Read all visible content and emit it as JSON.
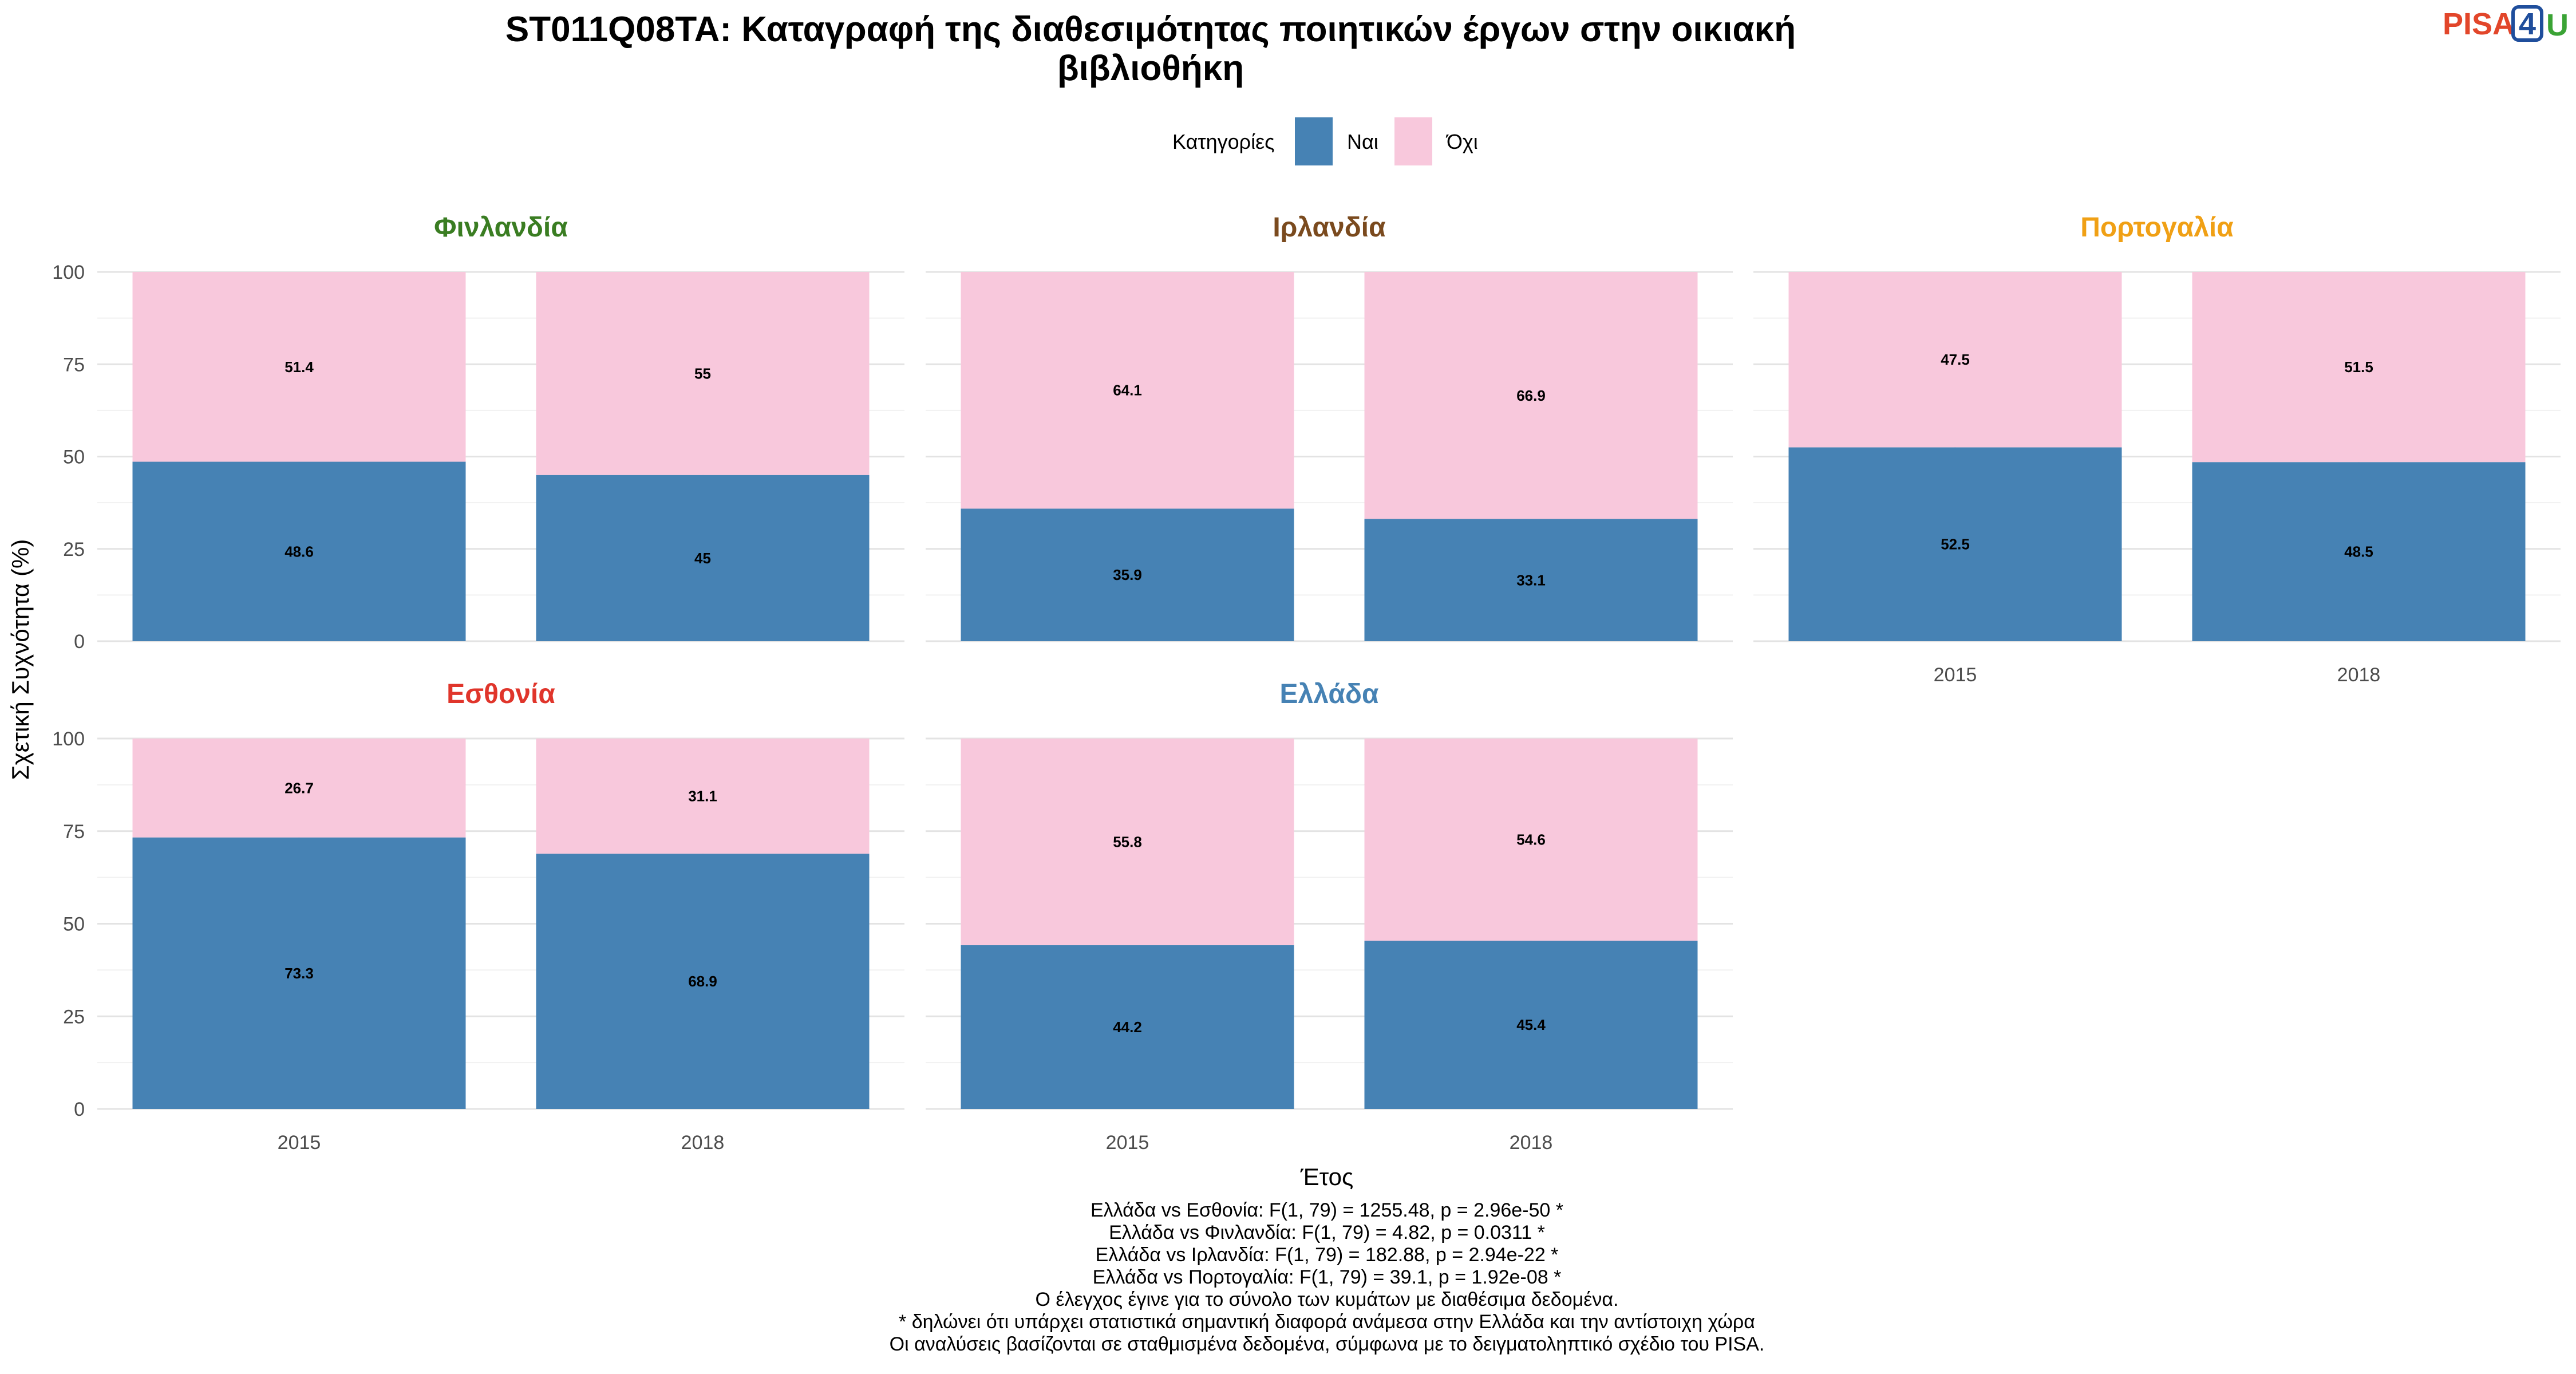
{
  "chart_data": {
    "type": "bar",
    "stacked": true,
    "title_lines": [
      "ST011Q08TA: Καταγραφή της διαθεσιμότητας ποιητικών έργων στην οικιακή",
      "βιβλιοθήκη"
    ],
    "legend": {
      "title": "Κατηγορίες",
      "position": "top",
      "entries": [
        {
          "label": "Ναι",
          "color": "#4682b4"
        },
        {
          "label": "Όχι",
          "color": "#f8c8dc"
        }
      ]
    },
    "xlabel": "Έτος",
    "ylabel": "Σχετική Συχνότητα (%)",
    "ylim": [
      0,
      100
    ],
    "yticks": [
      "0",
      "25",
      "50",
      "75",
      "100"
    ],
    "categories": [
      "2015",
      "2018"
    ],
    "grid": true,
    "panels": [
      {
        "title": "Φινλανδία",
        "title_color": "#3a7d22",
        "series": [
          {
            "name": "Ναι",
            "values": [
              48.6,
              45
            ]
          },
          {
            "name": "Όχι",
            "values": [
              51.4,
              55
            ]
          }
        ],
        "labels": {
          "Ναι": [
            "48.6",
            "45"
          ],
          "Όχι": [
            "51.4",
            "55"
          ]
        }
      },
      {
        "title": "Ιρλανδία",
        "title_color": "#7a4a1e",
        "series": [
          {
            "name": "Ναι",
            "values": [
              35.9,
              33.1
            ]
          },
          {
            "name": "Όχι",
            "values": [
              64.1,
              66.9
            ]
          }
        ],
        "labels": {
          "Ναι": [
            "35.9",
            "33.1"
          ],
          "Όχι": [
            "64.1",
            "66.9"
          ]
        }
      },
      {
        "title": "Πορτογαλία",
        "title_color": "#f0a015",
        "series": [
          {
            "name": "Ναι",
            "values": [
              52.5,
              48.5
            ]
          },
          {
            "name": "Όχι",
            "values": [
              47.5,
              51.5
            ]
          }
        ],
        "labels": {
          "Ναι": [
            "52.5",
            "48.5"
          ],
          "Όχι": [
            "47.5",
            "51.5"
          ]
        }
      },
      {
        "title": "Εσθονία",
        "title_color": "#e0352b",
        "series": [
          {
            "name": "Ναι",
            "values": [
              73.3,
              68.9
            ]
          },
          {
            "name": "Όχι",
            "values": [
              26.7,
              31.1
            ]
          }
        ],
        "labels": {
          "Ναι": [
            "73.3",
            "68.9"
          ],
          "Όχι": [
            "26.7",
            "31.1"
          ]
        }
      },
      {
        "title": "Ελλάδα",
        "title_color": "#4682b4",
        "series": [
          {
            "name": "Ναι",
            "values": [
              44.2,
              45.4
            ]
          },
          {
            "name": "Όχι",
            "values": [
              55.8,
              54.6
            ]
          }
        ],
        "labels": {
          "Ναι": [
            "44.2",
            "45.4"
          ],
          "Όχι": [
            "55.8",
            "54.6"
          ]
        }
      }
    ],
    "caption_lines": [
      "Ελλάδα vs Εσθονία: F(1, 79) = 1255.48, p = 2.96e-50 *",
      "Ελλάδα vs Φινλανδία: F(1, 79) = 4.82, p = 0.0311 *",
      "Ελλάδα vs Ιρλανδία: F(1, 79) = 182.88, p = 2.94e-22 *",
      "Ελλάδα vs Πορτογαλία: F(1, 79) = 39.1, p = 1.92e-08 *",
      "Ο έλεγχος έγινε για το σύνολο των κυμάτων με διαθέσιμα δεδομένα.",
      "* δηλώνει ότι υπάρχει στατιστικά σημαντική διαφορά ανάμεσα στην Ελλάδα και την αντίστοιχη χώρα",
      "Οι αναλύσεις βασίζονται σε σταθμισμένα δεδομένα, σύμφωνα με το δειγματοληπτικό σχέδιο του PISA."
    ]
  },
  "logo": {
    "text_pisa": "PISA",
    "text_4": "4",
    "text_u": "U",
    "color_pisa": "#e2462a",
    "color_4": "#1f4e9c",
    "color_u": "#3aa335"
  }
}
